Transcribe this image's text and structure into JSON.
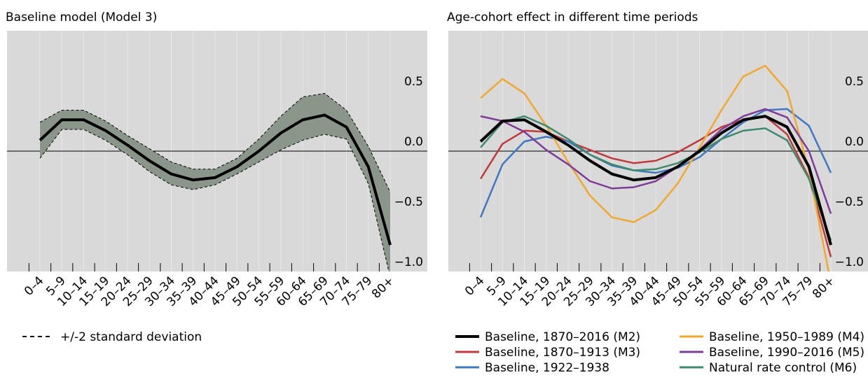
{
  "chart_data": [
    {
      "type": "line",
      "title": "Baseline model (Model 3)",
      "categories": [
        "0–4",
        "5–9",
        "10–14",
        "15–19",
        "20–24",
        "25–29",
        "30–34",
        "35–39",
        "40–44",
        "45–49",
        "50–54",
        "55–59",
        "60–64",
        "65–69",
        "70–74",
        "75–79",
        "80+"
      ],
      "color": "#000000",
      "values": [
        0.09,
        0.26,
        0.26,
        0.17,
        0.05,
        -0.08,
        -0.19,
        -0.24,
        -0.22,
        -0.13,
        0.0,
        0.15,
        0.26,
        0.3,
        0.2,
        -0.13,
        -0.78
      ],
      "band": {
        "name": "+/-2 standard deviation",
        "color": "#8b968a",
        "upper": [
          0.24,
          0.34,
          0.34,
          0.25,
          0.13,
          0.02,
          -0.09,
          -0.15,
          -0.15,
          -0.06,
          0.1,
          0.29,
          0.45,
          0.48,
          0.34,
          0.04,
          -0.34
        ],
        "lower": [
          -0.06,
          0.18,
          0.18,
          0.09,
          -0.03,
          -0.17,
          -0.28,
          -0.32,
          -0.28,
          -0.19,
          -0.09,
          0.01,
          0.09,
          0.14,
          0.1,
          -0.27,
          -1.05
        ]
      },
      "ylim": [
        -1.0,
        1.0
      ],
      "yticks": [
        0.5,
        {
          "value": 0.0,
          "label": "0.0"
        },
        {
          "value": -0.5,
          "label": "−0.5"
        },
        {
          "value": -1.0,
          "label": "−1.0"
        }
      ],
      "grid": true
    },
    {
      "type": "line",
      "title": "Age-cohort effect in different time periods",
      "categories": [
        "0–4",
        "5–9",
        "10–14",
        "15–19",
        "20–24",
        "25–29",
        "30–34",
        "35–39",
        "40–44",
        "45–49",
        "50–54",
        "55–59",
        "60–64",
        "65–69",
        "70–74",
        "75–79",
        "80+"
      ],
      "series": [
        {
          "name": "Baseline, 1870–2016 (M2)",
          "color": "#000000",
          "values": [
            0.08,
            0.25,
            0.26,
            0.16,
            0.05,
            -0.08,
            -0.19,
            -0.24,
            -0.22,
            -0.13,
            0.0,
            0.15,
            0.26,
            0.29,
            0.2,
            -0.13,
            -0.78
          ]
        },
        {
          "name": "Baseline, 1870–1913 (M3)",
          "color": "#c0393b",
          "values": [
            -0.23,
            0.06,
            0.17,
            0.16,
            0.08,
            0.01,
            -0.06,
            -0.1,
            -0.08,
            -0.01,
            0.09,
            0.2,
            0.26,
            0.29,
            0.14,
            -0.22,
            -0.88
          ]
        },
        {
          "name": "Baseline, 1922–1938",
          "color": "#3f78c1",
          "values": [
            -0.55,
            -0.11,
            0.08,
            0.12,
            0.08,
            -0.03,
            -0.12,
            -0.16,
            -0.18,
            -0.14,
            -0.05,
            0.1,
            0.24,
            0.34,
            0.35,
            0.21,
            -0.18
          ]
        },
        {
          "name": "Baseline, 1950–1989 (M4)",
          "color": "#f0a830",
          "values": [
            0.44,
            0.6,
            0.48,
            0.21,
            -0.09,
            -0.37,
            -0.55,
            -0.59,
            -0.49,
            -0.27,
            0.03,
            0.34,
            0.62,
            0.71,
            0.5,
            -0.16,
            -1.1
          ]
        },
        {
          "name": "Baseline, 1990–2016 (M5)",
          "color": "#7d3c98",
          "values": [
            0.29,
            0.25,
            0.16,
            0.01,
            -0.11,
            -0.25,
            -0.31,
            -0.3,
            -0.25,
            -0.13,
            0.01,
            0.18,
            0.29,
            0.35,
            0.28,
            0.0,
            -0.52
          ]
        },
        {
          "name": "Natural rate control (M6)",
          "color": "#3f8a6c",
          "values": [
            0.03,
            0.24,
            0.29,
            0.21,
            0.1,
            -0.03,
            -0.11,
            -0.16,
            -0.15,
            -0.1,
            -0.01,
            0.1,
            0.17,
            0.19,
            0.09,
            -0.23,
            -0.74
          ]
        }
      ],
      "ylim": [
        -1.0,
        1.0
      ],
      "yticks": [
        0.5,
        {
          "value": 0.0,
          "label": "0.0"
        },
        {
          "value": -0.5,
          "label": "−0.5"
        },
        {
          "value": -1.0,
          "label": "−1.0"
        }
      ],
      "grid": true
    }
  ]
}
